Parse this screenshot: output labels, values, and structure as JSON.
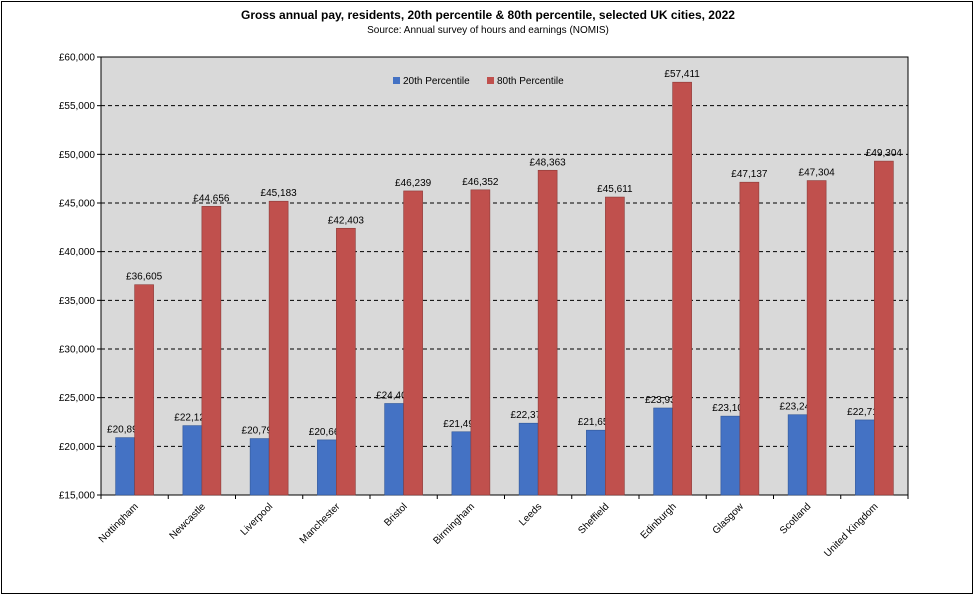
{
  "chart_data": {
    "type": "bar",
    "title": "Gross annual pay, residents, 20th percentile & 80th percentile, selected UK cities, 2022",
    "subtitle": "Source: Annual survey of hours and earnings (NOMIS)",
    "categories": [
      "Nottingham",
      "Newcastle",
      "Liverpool",
      "Manchester",
      "Bristol",
      "Birmingham",
      "Leeds",
      "Sheffield",
      "Edinburgh",
      "Glasgow",
      "Scotland",
      "United Kingdom"
    ],
    "series": [
      {
        "name": "20th Percentile",
        "color": "#4472C4",
        "values": [
          20893,
          22127,
          20798,
          20661,
          24401,
          21497,
          22377,
          21658,
          23939,
          23102,
          23247,
          22711
        ],
        "labels": [
          "£20,893",
          "£22,127",
          "£20,798",
          "£20,661",
          "£24,401",
          "£21,497",
          "£22,377",
          "£21,658",
          "£23,939",
          "£23,102",
          "£23,247",
          "£22,711"
        ]
      },
      {
        "name": "80th Percentile",
        "color": "#C0504D",
        "values": [
          36605,
          44656,
          45183,
          42403,
          46239,
          46352,
          48363,
          45611,
          57411,
          47137,
          47304,
          49304
        ],
        "labels": [
          "£36,605",
          "£44,656",
          "£45,183",
          "£42,403",
          "£46,239",
          "£46,352",
          "£48,363",
          "£45,611",
          "£57,411",
          "£47,137",
          "£47,304",
          "£49,304"
        ]
      }
    ],
    "ylim": [
      15000,
      60000
    ],
    "yticks": [
      15000,
      20000,
      25000,
      30000,
      35000,
      40000,
      45000,
      50000,
      55000,
      60000
    ],
    "ytick_labels": [
      "£15,000",
      "£20,000",
      "£25,000",
      "£30,000",
      "£35,000",
      "£40,000",
      "£45,000",
      "£50,000",
      "£55,000",
      "£60,000"
    ],
    "grid": true,
    "legend": "top-center",
    "plot_background": "#D9D9D9"
  }
}
